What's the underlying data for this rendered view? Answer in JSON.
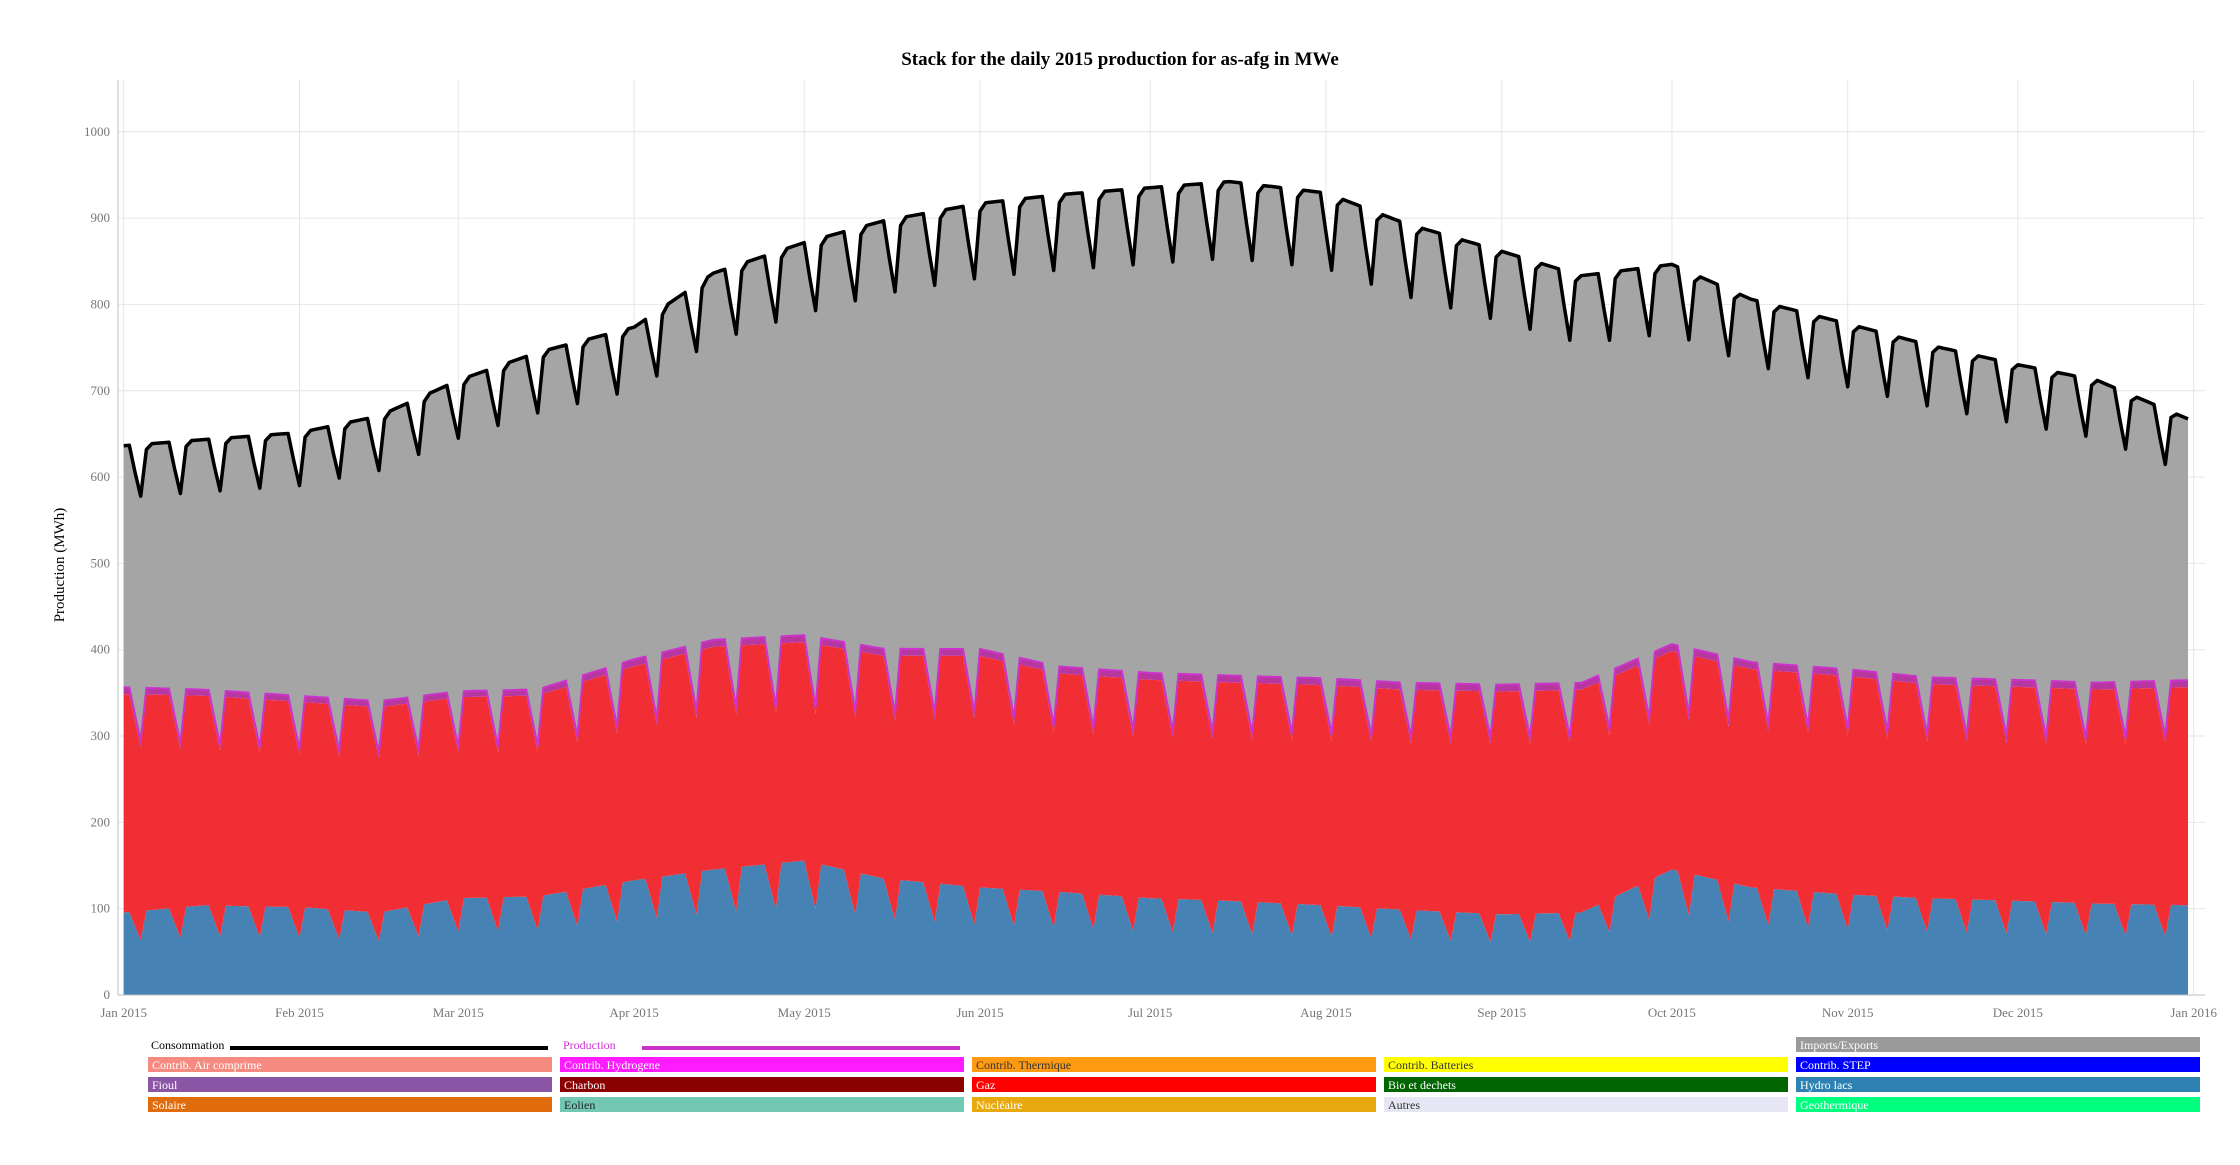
{
  "chart_data": {
    "type": "area",
    "title": "Stack for the daily 2015 production for as-afg in MWe",
    "ylabel": "Production (MWh)",
    "xlabel": "",
    "ylim": [
      0,
      1060
    ],
    "yticks": [
      0,
      100,
      200,
      300,
      400,
      500,
      600,
      700,
      800,
      900,
      1000
    ],
    "x_range": [
      "2014-12-31",
      "2016-01-03"
    ],
    "xticks": [
      {
        "date": "2015-01-01",
        "label": "Jan 2015"
      },
      {
        "date": "2015-02-01",
        "label": "Feb 2015"
      },
      {
        "date": "2015-03-01",
        "label": "Mar 2015"
      },
      {
        "date": "2015-04-01",
        "label": "Apr 2015"
      },
      {
        "date": "2015-05-01",
        "label": "May 2015"
      },
      {
        "date": "2015-06-01",
        "label": "Jun 2015"
      },
      {
        "date": "2015-07-01",
        "label": "Jul 2015"
      },
      {
        "date": "2015-08-01",
        "label": "Aug 2015"
      },
      {
        "date": "2015-09-01",
        "label": "Sep 2015"
      },
      {
        "date": "2015-10-01",
        "label": "Oct 2015"
      },
      {
        "date": "2015-11-01",
        "label": "Nov 2015"
      },
      {
        "date": "2015-12-01",
        "label": "Dec 2015"
      },
      {
        "date": "2016-01-01",
        "label": "Jan 2016"
      }
    ],
    "grid": true,
    "legend_position": "bottom",
    "dates_weekly": [
      "2015-01-01",
      "2015-01-15",
      "2015-02-01",
      "2015-02-15",
      "2015-03-01",
      "2015-03-15",
      "2015-04-01",
      "2015-04-15",
      "2015-05-01",
      "2015-05-15",
      "2015-06-01",
      "2015-06-15",
      "2015-07-01",
      "2015-07-15",
      "2015-08-01",
      "2015-08-15",
      "2015-09-01",
      "2015-09-15",
      "2015-10-01",
      "2015-10-15",
      "2015-11-01",
      "2015-11-15",
      "2015-12-01",
      "2015-12-15",
      "2016-01-01"
    ],
    "series": [
      {
        "name": "Hydro lacs",
        "color": "#4682b4",
        "values": [
          92,
          100,
          98,
          92,
          108,
          110,
          128,
          140,
          150,
          130,
          120,
          115,
          108,
          105,
          100,
          95,
          90,
          92,
          140,
          120,
          112,
          108,
          105,
          102,
          100
        ]
      },
      {
        "name": "Gaz",
        "color": "#f22e35",
        "values": [
          250,
          240,
          235,
          235,
          230,
          230,
          245,
          255,
          250,
          255,
          265,
          250,
          250,
          250,
          252,
          252,
          255,
          255,
          250,
          250,
          250,
          245,
          245,
          245,
          250
        ]
      },
      {
        "name": "Contrib. Hydrogene",
        "color": "#b6379f",
        "values": [
          8,
          7,
          7,
          7,
          7,
          7,
          8,
          8,
          8,
          8,
          8,
          8,
          8,
          8,
          8,
          8,
          8,
          8,
          8,
          8,
          8,
          8,
          8,
          8,
          8
        ]
      },
      {
        "name": "Imports/Exports",
        "color": "#a5a5a5",
        "values": [
          280,
          290,
          305,
          330,
          360,
          390,
          405,
          425,
          455,
          495,
          515,
          545,
          560,
          570,
          560,
          530,
          500,
          470,
          440,
          420,
          400,
          385,
          365,
          350,
          300
        ]
      }
    ],
    "consumption": {
      "name": "Consommation",
      "color": "#000000",
      "values": [
        630,
        637,
        645,
        664,
        705,
        737,
        766,
        828,
        863,
        888,
        908,
        918,
        926,
        933,
        920,
        885,
        853,
        825,
        838,
        798,
        770,
        746,
        723,
        705,
        658
      ]
    },
    "production": {
      "name": "Production",
      "color": "#cc33cc"
    }
  },
  "legend": [
    [
      {
        "label": "Consommation",
        "type": "line",
        "color": "#000000",
        "text_color": "#000000"
      },
      {
        "label": "Production",
        "type": "line",
        "color": "#cc33cc",
        "text_color": "#cc33cc"
      },
      null,
      null,
      {
        "label": "Imports/Exports",
        "type": "box",
        "color": "#9a9a9a",
        "text_color": "#ffffff"
      }
    ],
    [
      {
        "label": "Contrib. Air comprime",
        "type": "box",
        "color": "#f58a80",
        "text_color": "#ffffff"
      },
      {
        "label": "Contrib. Hydrogene",
        "type": "box",
        "color": "#ff1bff",
        "text_color": "#ffffff"
      },
      {
        "label": "Contrib. Thermique",
        "type": "box",
        "color": "#ff9b12",
        "text_color": "#333333"
      },
      {
        "label": "Contrib. Batteries",
        "type": "box",
        "color": "#ffff00",
        "text_color": "#333333"
      },
      {
        "label": "Contrib. STEP",
        "type": "box",
        "color": "#0000ff",
        "text_color": "#ffffff"
      }
    ],
    [
      {
        "label": "Fioul",
        "type": "box",
        "color": "#8a55a5",
        "text_color": "#ffffff"
      },
      {
        "label": "Charbon",
        "type": "box",
        "color": "#8b0000",
        "text_color": "#ffffff"
      },
      {
        "label": "Gaz",
        "type": "box",
        "color": "#ff0000",
        "text_color": "#ffffff"
      },
      {
        "label": "Bio et dechets",
        "type": "box",
        "color": "#006400",
        "text_color": "#ffffff"
      },
      {
        "label": "Hydro lacs",
        "type": "box",
        "color": "#2e81b3",
        "text_color": "#ffffff"
      }
    ],
    [
      {
        "label": "Solaire",
        "type": "box",
        "color": "#e06c0c",
        "text_color": "#ffffff"
      },
      {
        "label": "Eolien",
        "type": "box",
        "color": "#73c8b4",
        "text_color": "#222222"
      },
      {
        "label": "Nucléaire",
        "type": "box",
        "color": "#e8a90e",
        "text_color": "#ffffff"
      },
      {
        "label": "Autres",
        "type": "box",
        "color": "#e6e6f5",
        "text_color": "#333333"
      },
      {
        "label": "Geothermique",
        "type": "box",
        "color": "#00ff7f",
        "text_color": "#ffffff"
      }
    ]
  ]
}
